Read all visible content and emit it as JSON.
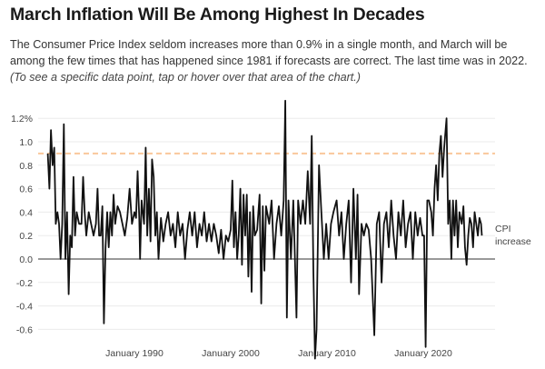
{
  "header": {
    "title": "March Inflation Will Be Among Highest In Decades",
    "description": "The Consumer Price Index seldom increases more than 0.9% in a single month, and March will be among the few times that has happened since 1981 if forecasts are correct. The last time was in 2022.",
    "note": "(To see a specific data point, tap or hover over that area of the chart.)"
  },
  "chart_data": {
    "type": "line",
    "title": "March Inflation Will Be Among Highest In Decades",
    "xlabel": "",
    "ylabel": "",
    "ylim": [
      -0.6,
      1.2
    ],
    "y_ticks": [
      "1.2%",
      "1.0",
      "0.8",
      "0.6",
      "0.4",
      "0.2",
      "0.0",
      "-0.2",
      "-0.4",
      "-0.6"
    ],
    "y_tick_values": [
      1.2,
      1.0,
      0.8,
      0.6,
      0.4,
      0.2,
      0.0,
      -0.2,
      -0.4,
      -0.6
    ],
    "x_ticks": [
      "January 1990",
      "January 2000",
      "January 2010",
      "January 2020"
    ],
    "x_tick_values": [
      1990,
      2000,
      2010,
      2020
    ],
    "grid": true,
    "reference_line": {
      "value": 0.9,
      "style": "dashed",
      "color": "#f9c89b"
    },
    "series": [
      {
        "name": "CPI increase",
        "color": "#111111",
        "points": [
          [
            "1981-01",
            0.9
          ],
          [
            "1981-03",
            0.6
          ],
          [
            "1981-05",
            1.1
          ],
          [
            "1981-07",
            0.8
          ],
          [
            "1981-09",
            0.95
          ],
          [
            "1981-11",
            0.3
          ],
          [
            "1982-01",
            0.4
          ],
          [
            "1982-03",
            0.3
          ],
          [
            "1982-05",
            0.0
          ],
          [
            "1982-07",
            0.3
          ],
          [
            "1982-09",
            1.15
          ],
          [
            "1982-11",
            0.0
          ],
          [
            "1983-01",
            0.4
          ],
          [
            "1983-03",
            -0.3
          ],
          [
            "1983-05",
            0.2
          ],
          [
            "1983-07",
            0.1
          ],
          [
            "1983-09",
            0.7
          ],
          [
            "1983-11",
            0.2
          ],
          [
            "1984-01",
            0.4
          ],
          [
            "1984-04",
            0.3
          ],
          [
            "1984-07",
            0.3
          ],
          [
            "1984-09",
            0.7
          ],
          [
            "1984-11",
            0.4
          ],
          [
            "1985-01",
            0.2
          ],
          [
            "1985-04",
            0.4
          ],
          [
            "1985-07",
            0.3
          ],
          [
            "1985-10",
            0.2
          ],
          [
            "1986-01",
            0.3
          ],
          [
            "1986-03",
            0.6
          ],
          [
            "1986-05",
            0.2
          ],
          [
            "1986-07",
            0.2
          ],
          [
            "1986-09",
            0.45
          ],
          [
            "1986-11",
            -0.55
          ],
          [
            "1987-01",
            0.1
          ],
          [
            "1987-03",
            0.4
          ],
          [
            "1987-05",
            0.1
          ],
          [
            "1987-07",
            0.4
          ],
          [
            "1987-09",
            0.2
          ],
          [
            "1987-11",
            0.55
          ],
          [
            "1988-01",
            0.3
          ],
          [
            "1988-04",
            0.45
          ],
          [
            "1988-07",
            0.4
          ],
          [
            "1988-10",
            0.3
          ],
          [
            "1989-01",
            0.2
          ],
          [
            "1989-04",
            0.35
          ],
          [
            "1989-07",
            0.6
          ],
          [
            "1989-10",
            0.3
          ],
          [
            "1990-01",
            0.4
          ],
          [
            "1990-03",
            0.35
          ],
          [
            "1990-05",
            0.75
          ],
          [
            "1990-07",
            0.35
          ],
          [
            "1990-08",
            0.0
          ],
          [
            "1990-10",
            0.5
          ],
          [
            "1991-01",
            0.3
          ],
          [
            "1991-03",
            0.95
          ],
          [
            "1991-05",
            0.2
          ],
          [
            "1991-07",
            0.6
          ],
          [
            "1991-09",
            0.15
          ],
          [
            "1991-11",
            0.85
          ],
          [
            "1992-01",
            0.7
          ],
          [
            "1992-03",
            0.2
          ],
          [
            "1992-05",
            0.4
          ],
          [
            "1992-07",
            0.0
          ],
          [
            "1992-10",
            0.35
          ],
          [
            "1993-01",
            0.15
          ],
          [
            "1993-04",
            0.3
          ],
          [
            "1993-07",
            0.4
          ],
          [
            "1993-10",
            0.2
          ],
          [
            "1994-01",
            0.3
          ],
          [
            "1994-04",
            0.1
          ],
          [
            "1994-07",
            0.4
          ],
          [
            "1994-10",
            0.2
          ],
          [
            "1995-01",
            0.3
          ],
          [
            "1995-04",
            0.0
          ],
          [
            "1995-07",
            0.25
          ],
          [
            "1995-10",
            0.4
          ],
          [
            "1996-01",
            0.2
          ],
          [
            "1996-04",
            0.4
          ],
          [
            "1996-07",
            0.1
          ],
          [
            "1996-10",
            0.3
          ],
          [
            "1997-01",
            0.2
          ],
          [
            "1997-04",
            0.4
          ],
          [
            "1997-07",
            0.15
          ],
          [
            "1997-10",
            0.3
          ],
          [
            "1998-01",
            0.15
          ],
          [
            "1998-04",
            0.3
          ],
          [
            "1998-07",
            0.2
          ],
          [
            "1998-10",
            0.05
          ],
          [
            "1999-01",
            0.25
          ],
          [
            "1999-04",
            0.0
          ],
          [
            "1999-07",
            0.2
          ],
          [
            "1999-10",
            0.15
          ],
          [
            "2000-01",
            0.25
          ],
          [
            "2000-03",
            0.67
          ],
          [
            "2000-05",
            0.1
          ],
          [
            "2000-07",
            0.4
          ],
          [
            "2000-09",
            0.0
          ],
          [
            "2000-11",
            0.2
          ],
          [
            "2001-01",
            0.6
          ],
          [
            "2001-03",
            -0.05
          ],
          [
            "2001-05",
            0.55
          ],
          [
            "2001-07",
            0.2
          ],
          [
            "2001-09",
            0.55
          ],
          [
            "2001-11",
            -0.15
          ],
          [
            "2002-01",
            0.4
          ],
          [
            "2002-03",
            -0.28
          ],
          [
            "2002-05",
            0.45
          ],
          [
            "2002-07",
            0.2
          ],
          [
            "2002-10",
            0.25
          ],
          [
            "2003-01",
            0.55
          ],
          [
            "2003-03",
            -0.38
          ],
          [
            "2003-05",
            0.45
          ],
          [
            "2003-07",
            -0.1
          ],
          [
            "2003-09",
            0.45
          ],
          [
            "2004-01",
            0.3
          ],
          [
            "2004-04",
            0.5
          ],
          [
            "2004-07",
            0.0
          ],
          [
            "2004-10",
            0.3
          ],
          [
            "2005-01",
            0.45
          ],
          [
            "2005-04",
            0.2
          ],
          [
            "2005-07",
            0.5
          ],
          [
            "2005-09",
            1.35
          ],
          [
            "2005-11",
            -0.5
          ],
          [
            "2006-01",
            0.5
          ],
          [
            "2006-04",
            0.0
          ],
          [
            "2006-07",
            0.5
          ],
          [
            "2006-09",
            0.0
          ],
          [
            "2006-11",
            -0.5
          ],
          [
            "2007-01",
            0.5
          ],
          [
            "2007-04",
            0.3
          ],
          [
            "2007-07",
            0.5
          ],
          [
            "2007-10",
            0.3
          ],
          [
            "2008-01",
            0.75
          ],
          [
            "2008-04",
            0.3
          ],
          [
            "2008-06",
            1.05
          ],
          [
            "2008-08",
            -0.1
          ],
          [
            "2008-10",
            -0.85
          ],
          [
            "2008-12",
            -0.6
          ],
          [
            "2009-03",
            0.8
          ],
          [
            "2009-06",
            0.4
          ],
          [
            "2009-09",
            0.0
          ],
          [
            "2009-12",
            0.3
          ],
          [
            "2010-03",
            0.0
          ],
          [
            "2010-06",
            0.3
          ],
          [
            "2010-09",
            0.4
          ],
          [
            "2011-01",
            0.5
          ],
          [
            "2011-04",
            0.2
          ],
          [
            "2011-07",
            0.4
          ],
          [
            "2011-10",
            0.0
          ],
          [
            "2012-01",
            0.3
          ],
          [
            "2012-04",
            0.5
          ],
          [
            "2012-07",
            -0.2
          ],
          [
            "2012-10",
            0.6
          ],
          [
            "2013-01",
            0.0
          ],
          [
            "2013-03",
            0.55
          ],
          [
            "2013-05",
            -0.3
          ],
          [
            "2013-08",
            0.3
          ],
          [
            "2013-11",
            0.2
          ],
          [
            "2014-02",
            0.3
          ],
          [
            "2014-05",
            0.25
          ],
          [
            "2014-08",
            0.0
          ],
          [
            "2014-12",
            -0.65
          ],
          [
            "2015-03",
            0.3
          ],
          [
            "2015-06",
            0.4
          ],
          [
            "2015-09",
            -0.2
          ],
          [
            "2015-12",
            0.3
          ],
          [
            "2016-03",
            0.4
          ],
          [
            "2016-06",
            0.1
          ],
          [
            "2016-09",
            0.5
          ],
          [
            "2016-12",
            0.2
          ],
          [
            "2017-03",
            0.0
          ],
          [
            "2017-06",
            0.4
          ],
          [
            "2017-09",
            0.2
          ],
          [
            "2017-12",
            0.5
          ],
          [
            "2018-03",
            0.1
          ],
          [
            "2018-06",
            0.3
          ],
          [
            "2018-09",
            0.4
          ],
          [
            "2018-12",
            0.0
          ],
          [
            "2019-03",
            0.4
          ],
          [
            "2019-06",
            0.2
          ],
          [
            "2019-09",
            0.35
          ],
          [
            "2019-12",
            0.2
          ],
          [
            "2020-02",
            0.2
          ],
          [
            "2020-04",
            -0.75
          ],
          [
            "2020-06",
            0.5
          ],
          [
            "2020-08",
            0.5
          ],
          [
            "2020-11",
            0.4
          ],
          [
            "2021-01",
            0.2
          ],
          [
            "2021-03",
            0.6
          ],
          [
            "2021-05",
            0.8
          ],
          [
            "2021-07",
            0.5
          ],
          [
            "2021-09",
            0.9
          ],
          [
            "2021-11",
            1.05
          ],
          [
            "2022-01",
            0.7
          ],
          [
            "2022-03",
            0.95
          ],
          [
            "2022-06",
            1.2
          ],
          [
            "2022-08",
            0.3
          ],
          [
            "2022-10",
            0.5
          ],
          [
            "2022-12",
            0.0
          ],
          [
            "2023-02",
            0.5
          ],
          [
            "2023-04",
            0.2
          ],
          [
            "2023-06",
            0.5
          ],
          [
            "2023-08",
            0.1
          ],
          [
            "2023-10",
            0.4
          ],
          [
            "2024-01",
            0.3
          ],
          [
            "2024-03",
            0.45
          ],
          [
            "2024-05",
            0.1
          ],
          [
            "2024-07",
            -0.05
          ],
          [
            "2024-09",
            0.2
          ],
          [
            "2024-11",
            0.35
          ],
          [
            "2025-01",
            0.3
          ],
          [
            "2025-03",
            0.1
          ],
          [
            "2025-05",
            0.4
          ],
          [
            "2025-07",
            0.3
          ],
          [
            "2025-09",
            0.2
          ],
          [
            "2025-11",
            0.35
          ],
          [
            "2026-01",
            0.3
          ],
          [
            "2026-02",
            0.2
          ]
        ]
      }
    ]
  }
}
